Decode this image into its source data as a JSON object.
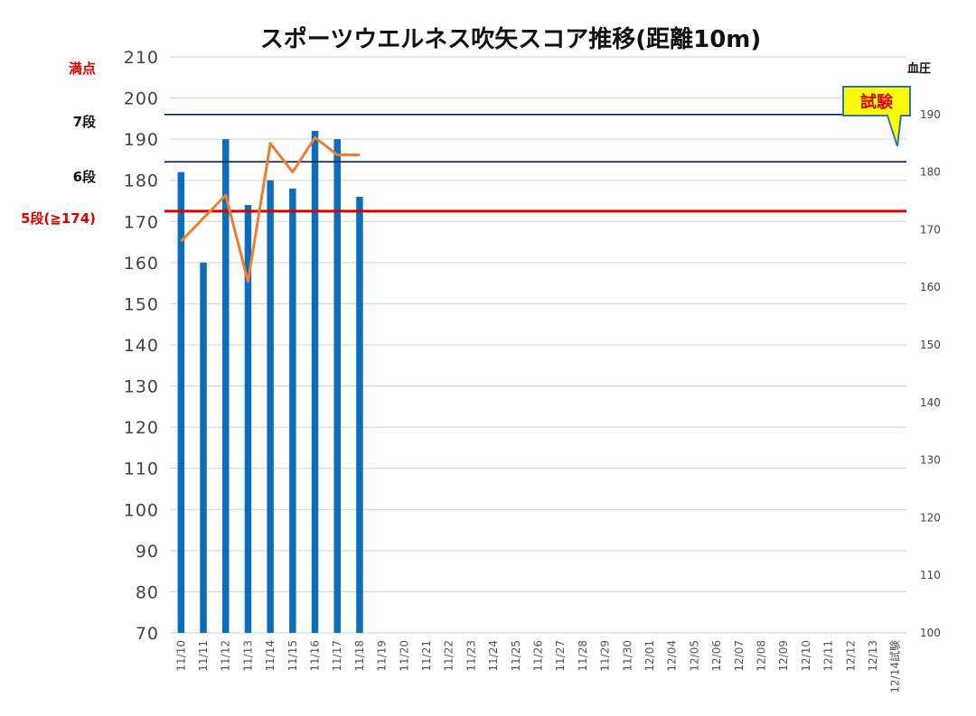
{
  "chart_data": {
    "type": "bar",
    "title": "スポーツウエルネス吹矢スコア推移(距離10m)",
    "categories": [
      "11/10",
      "11/11",
      "11/12",
      "11/13",
      "11/14",
      "11/15",
      "11/16",
      "11/17",
      "11/18",
      "11/19",
      "11/20",
      "11/21",
      "11/22",
      "11/23",
      "11/24",
      "11/25",
      "11/26",
      "11/27",
      "11/28",
      "11/29",
      "11/30",
      "12/01",
      "12/04",
      "12/05",
      "12/06",
      "12/07",
      "12/08",
      "12/09",
      "12/10",
      "12/11",
      "12/12",
      "12/13",
      "12/14試験"
    ],
    "ylim": [
      70,
      210
    ],
    "yticks": [
      70,
      80,
      90,
      100,
      110,
      120,
      130,
      140,
      150,
      160,
      170,
      180,
      190,
      200,
      210
    ],
    "y2label": "血圧",
    "y2lim": [
      100,
      200
    ],
    "y2ticks": [
      100,
      110,
      120,
      130,
      140,
      150,
      160,
      170,
      180,
      190
    ],
    "grid": true,
    "series": [
      {
        "type": "bar",
        "color": "#0a6ebd",
        "values": [
          182,
          160,
          190,
          174,
          180,
          178,
          192,
          190,
          176,
          null,
          null,
          null,
          null,
          null,
          null,
          null,
          null,
          null,
          null,
          null,
          null,
          null,
          null,
          null,
          null,
          null,
          null,
          null,
          null,
          null,
          null,
          null,
          null
        ]
      },
      {
        "type": "line",
        "axis": "right",
        "color": "#ed7d31",
        "values": [
          168,
          172,
          176,
          161,
          185,
          180,
          186,
          183,
          183,
          null,
          null,
          null,
          null,
          null,
          null,
          null,
          null,
          null,
          null,
          null,
          null,
          null,
          null,
          null,
          null,
          null,
          null,
          null,
          null,
          null,
          null,
          null,
          null
        ]
      }
    ],
    "reference_lines": [
      {
        "label": "満点",
        "value": 210,
        "color": "#e00000",
        "line": false
      },
      {
        "label": "7段",
        "value": 196,
        "color": "#111111",
        "line": true,
        "line_color": "#0d1f5c"
      },
      {
        "label": "6段",
        "value": 184.5,
        "color": "#111111",
        "line": true,
        "line_color": "#0d1f5c"
      },
      {
        "label": "5段(≧174)",
        "value": 172.5,
        "color": "#e00000",
        "line": true,
        "line_color": "#e00000"
      }
    ],
    "annotations": [
      {
        "text": "試験",
        "target_category": "12/14試験",
        "style": "callout",
        "fill": "#ffff00",
        "border": "#2e75b6"
      }
    ]
  }
}
